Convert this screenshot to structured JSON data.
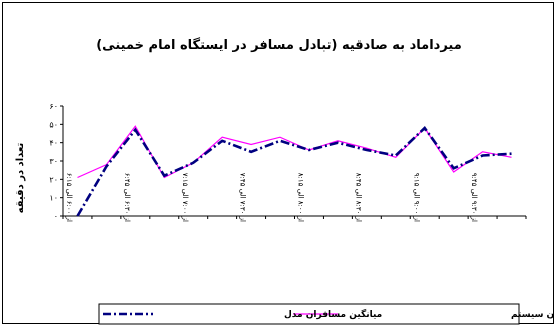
{
  "chart_data": {
    "type": "line",
    "title": "میرداماد به صادقیه (تبادل مسافر در ایستگاه امام خمینی)",
    "ylabel": "تعداد در دقیقه",
    "xlabel": "",
    "ylim": [
      0,
      60
    ],
    "yticks": [
      "۰",
      "۱۰",
      "۲۰",
      "۳۰",
      "۴۰",
      "۵۰",
      "۶۰"
    ],
    "xticks": [
      "از ۶:۰۰ الی ۶:۱۵",
      "از ۶:۳۰ الی ۶:۴۵",
      "از ۷:۰۰ الی ۷:۱۵",
      "از ۷:۳۰ الی ۷:۴۵",
      "از ۸:۰۰ الی ۸:۱۵",
      "از ۸:۳۰ الی ۸:۴۵",
      "از ۹:۰۰ الی ۹:۱۵",
      "از ۹:۳۰ الی ۹:۴۵"
    ],
    "grid": false,
    "legend_position": "bottom",
    "series": [
      {
        "name": "میانگین مسافران سیستم",
        "color": "#ff00ff",
        "style": "solid",
        "values": [
          21,
          28,
          49,
          21,
          29,
          43,
          39,
          43,
          36,
          41,
          37,
          32,
          48,
          24,
          35,
          32
        ]
      },
      {
        "name": "میانگین مسافران مدل",
        "color": "#000080",
        "style": "dashdot",
        "values": [
          0,
          27,
          47,
          22,
          29,
          41,
          35,
          41,
          36,
          40,
          36,
          33,
          48,
          26,
          33,
          34
        ]
      }
    ]
  }
}
